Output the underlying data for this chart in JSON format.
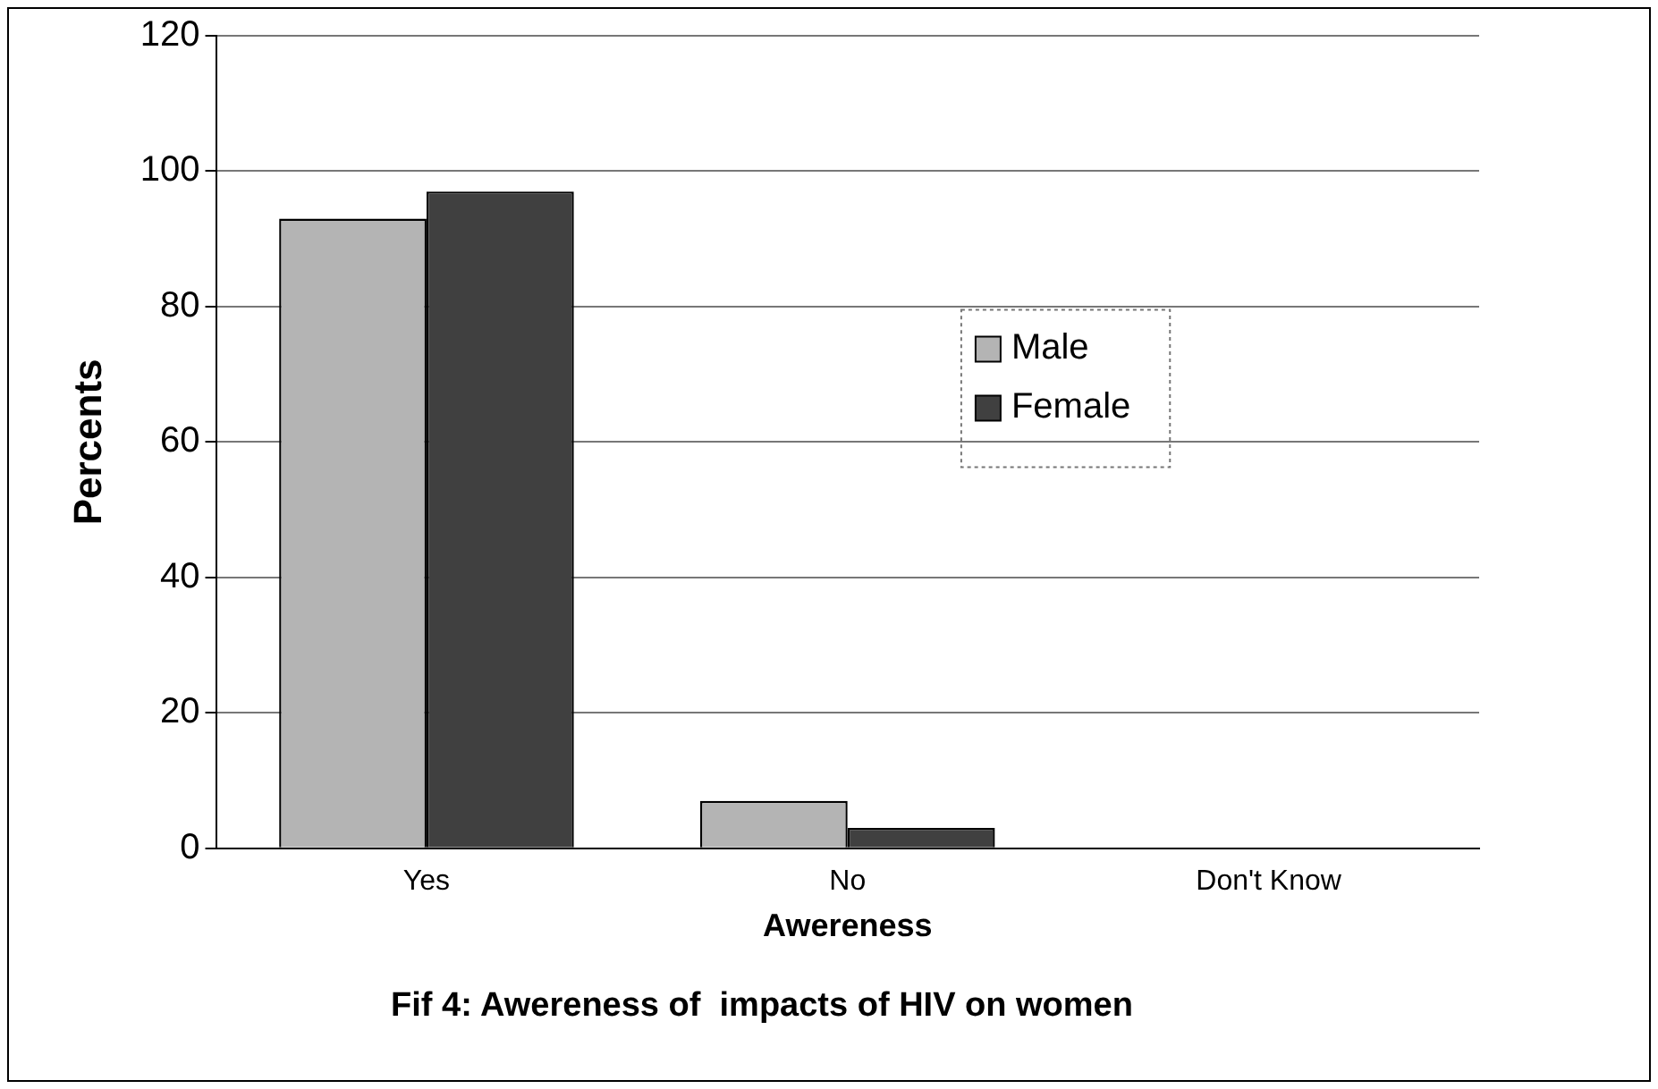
{
  "chart_data": {
    "type": "bar",
    "title": "Fif 4: Awereness of  impacts of HIV on women",
    "xlabel": "Awereness",
    "ylabel": "Percents",
    "categories": [
      "Yes",
      "No",
      "Don't Know"
    ],
    "series": [
      {
        "name": "Male",
        "color": "#b4b4b4",
        "values": [
          93,
          7,
          0
        ]
      },
      {
        "name": "Female",
        "color": "#404040",
        "values": [
          97,
          3,
          0
        ]
      }
    ],
    "ylim": [
      0,
      120
    ],
    "yticks": [
      0,
      20,
      40,
      60,
      80,
      100,
      120
    ],
    "grid": "y",
    "legend": "right"
  }
}
